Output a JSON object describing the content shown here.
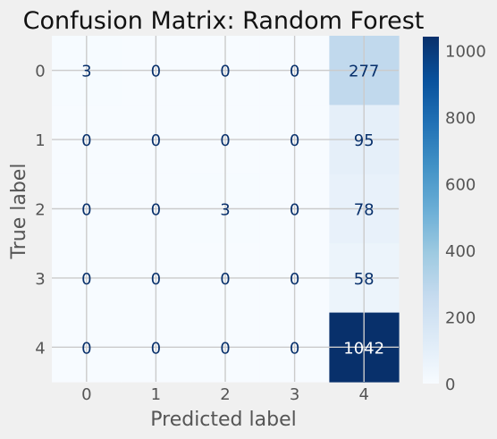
{
  "chart_data": {
    "type": "heatmap",
    "title": "Confusion Matrix: Random Forest",
    "xlabel": "Predicted label",
    "ylabel": "True label",
    "x_tick_labels": [
      "0",
      "1",
      "2",
      "3",
      "4"
    ],
    "y_tick_labels": [
      "0",
      "1",
      "2",
      "3",
      "4"
    ],
    "matrix": [
      [
        3,
        0,
        0,
        0,
        277
      ],
      [
        0,
        0,
        0,
        0,
        95
      ],
      [
        0,
        0,
        3,
        0,
        78
      ],
      [
        0,
        0,
        0,
        0,
        58
      ],
      [
        0,
        0,
        0,
        0,
        1042
      ]
    ],
    "colormap": "Blues",
    "colorbar": {
      "range": [
        0,
        1042
      ],
      "ticks": [
        0,
        200,
        400,
        600,
        800,
        1000
      ]
    },
    "grid": true,
    "colors": {
      "figure_background": "#f0f0f0",
      "grid": "#cbcbcb",
      "text_dark_cell": "#08306b",
      "text_light_cell": "#ffffff",
      "axis_text": "#555555",
      "title_text": "#111111"
    }
  }
}
